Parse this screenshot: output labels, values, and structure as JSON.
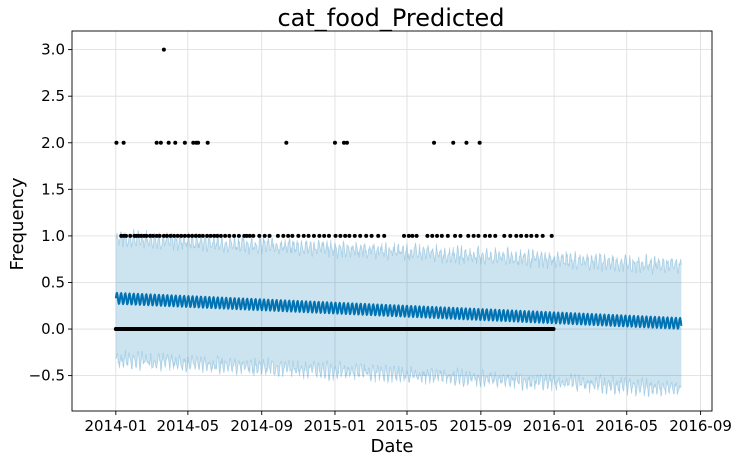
{
  "chart_data": {
    "type": "scatter",
    "title": "cat_food_Predicted",
    "xlabel": "Date",
    "ylabel": "Frequency",
    "xlim": [
      "2013-10-20",
      "2016-09-20"
    ],
    "ylim": [
      -0.88,
      3.2
    ],
    "grid": true,
    "x_ticks": [
      "2014-01",
      "2014-05",
      "2014-09",
      "2015-01",
      "2015-05",
      "2015-09",
      "2016-01",
      "2016-05",
      "2016-09"
    ],
    "y_ticks": [
      "−0.5",
      "0.0",
      "0.5",
      "1.0",
      "1.5",
      "2.0",
      "2.5",
      "3.0"
    ],
    "y_tick_values": [
      -0.5,
      0.0,
      0.5,
      1.0,
      1.5,
      2.0,
      2.5,
      3.0
    ],
    "colors": {
      "forecast_line": "#0072B2",
      "uncertainty_band": "#0072B2",
      "observed_points": "#000000"
    },
    "forecast": {
      "start": "2014-01-01",
      "end": "2016-07-31",
      "yhat_start": 0.33,
      "yhat_end": 0.06,
      "weekly_amplitude": 0.06,
      "lower_start": -0.33,
      "lower_end": -0.64,
      "upper_start": 0.98,
      "upper_end": 0.68,
      "band_noise": 0.05
    },
    "observed": {
      "start": "2014-01-01",
      "end": "2015-12-31",
      "zeros_daily": true,
      "ones": [
        "2014-01-10",
        "2014-01-14",
        "2014-01-18",
        "2014-01-25",
        "2014-02-01",
        "2014-02-04",
        "2014-02-08",
        "2014-02-12",
        "2014-02-17",
        "2014-02-21",
        "2014-02-27",
        "2014-03-04",
        "2014-03-10",
        "2014-03-15",
        "2014-03-22",
        "2014-03-27",
        "2014-04-02",
        "2014-04-08",
        "2014-04-14",
        "2014-04-20",
        "2014-04-26",
        "2014-05-02",
        "2014-05-08",
        "2014-05-14",
        "2014-05-20",
        "2014-05-26",
        "2014-06-02",
        "2014-06-08",
        "2014-06-14",
        "2014-06-19",
        "2014-06-25",
        "2014-07-02",
        "2014-07-09",
        "2014-07-17",
        "2014-07-25",
        "2014-08-03",
        "2014-08-07",
        "2014-08-12",
        "2014-08-18",
        "2014-08-28",
        "2014-09-06",
        "2014-09-14",
        "2014-09-28",
        "2014-10-07",
        "2014-10-15",
        "2014-10-22",
        "2014-11-01",
        "2014-11-10",
        "2014-11-18",
        "2014-11-27",
        "2014-12-06",
        "2014-12-14",
        "2014-12-22",
        "2015-01-02",
        "2015-01-10",
        "2015-01-18",
        "2015-01-25",
        "2015-02-03",
        "2015-02-12",
        "2015-02-22",
        "2015-03-03",
        "2015-03-14",
        "2015-03-24",
        "2015-04-26",
        "2015-05-04",
        "2015-05-10",
        "2015-05-17",
        "2015-06-04",
        "2015-06-12",
        "2015-06-20",
        "2015-06-28",
        "2015-07-08",
        "2015-07-20",
        "2015-07-29",
        "2015-08-11",
        "2015-08-20",
        "2015-08-28",
        "2015-09-08",
        "2015-09-16",
        "2015-09-25",
        "2015-10-10",
        "2015-10-20",
        "2015-10-30",
        "2015-11-07",
        "2015-11-16",
        "2015-11-24",
        "2015-12-03",
        "2015-12-13",
        "2015-12-28"
      ],
      "twos": [
        "2014-01-02",
        "2014-01-14",
        "2014-03-10",
        "2014-03-17",
        "2014-03-30",
        "2014-04-10",
        "2014-04-26",
        "2014-05-10",
        "2014-05-15",
        "2014-05-18",
        "2014-06-03",
        "2014-10-12",
        "2015-01-01",
        "2015-01-16",
        "2015-01-21",
        "2015-06-15",
        "2015-07-17",
        "2015-08-08",
        "2015-08-30"
      ],
      "threes": [
        "2014-03-22"
      ]
    }
  }
}
